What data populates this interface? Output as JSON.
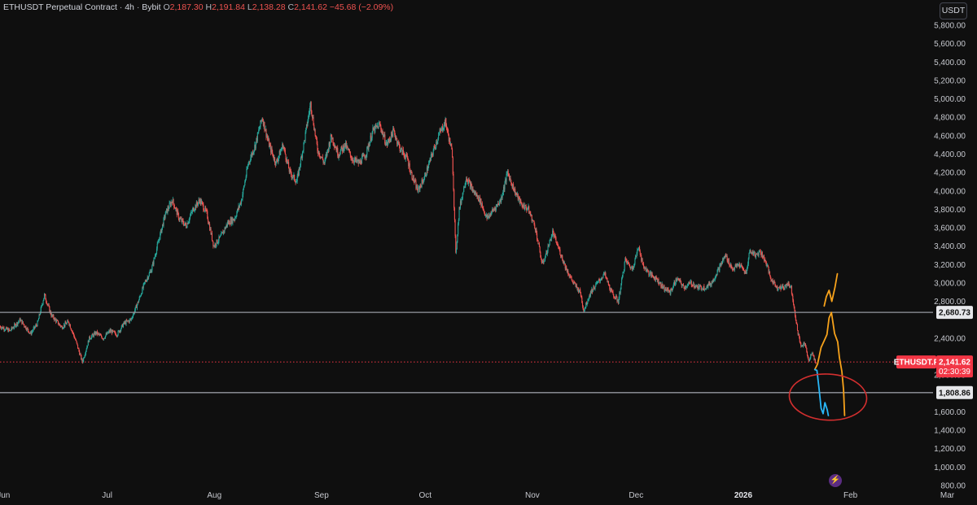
{
  "header": {
    "symbol": "ETHUSDT Perpetual Contract",
    "sep1": "·",
    "interval": "4h",
    "sep2": "·",
    "exchange": "Bybit",
    "open_label": "O",
    "open": "2,187.30",
    "high_label": "H",
    "high": "2,191.84",
    "low_label": "L",
    "low": "2,138.28",
    "close_label": "C",
    "close": "2,141.62",
    "change": "−45.68 (−2.09%)"
  },
  "unit_button": "USDT",
  "bolt_icon": "⚡",
  "colors": {
    "up": "#26a69a",
    "down": "#ef5350",
    "level_line": "#9598a1",
    "orange_path": "#f7a21b",
    "blue_path": "#29b6f6",
    "circle": "#d32f2f",
    "price_tag": "#f23645"
  },
  "chart_data": {
    "type": "candlestick",
    "symbol": "ETHUSDT.P",
    "ylim": [
      800,
      5800
    ],
    "y_ticks": [
      {
        "v": 5800,
        "label": "5,800.00"
      },
      {
        "v": 5600,
        "label": "5,600.00"
      },
      {
        "v": 5400,
        "label": "5,400.00"
      },
      {
        "v": 5200,
        "label": "5,200.00"
      },
      {
        "v": 5000,
        "label": "5,000.00"
      },
      {
        "v": 4800,
        "label": "4,800.00"
      },
      {
        "v": 4600,
        "label": "4,600.00"
      },
      {
        "v": 4400,
        "label": "4,400.00"
      },
      {
        "v": 4200,
        "label": "4,200.00"
      },
      {
        "v": 4000,
        "label": "4,000.00"
      },
      {
        "v": 3800,
        "label": "3,800.00"
      },
      {
        "v": 3600,
        "label": "3,600.00"
      },
      {
        "v": 3400,
        "label": "3,400.00"
      },
      {
        "v": 3200,
        "label": "3,200.00"
      },
      {
        "v": 3000,
        "label": "3,000.00"
      },
      {
        "v": 2800,
        "label": "2,800.00"
      },
      {
        "v": 2400,
        "label": "2,400.00"
      },
      {
        "v": 2000,
        "label": "2,000.00"
      },
      {
        "v": 1600,
        "label": "1,600.00"
      },
      {
        "v": 1400,
        "label": "1,400.00"
      },
      {
        "v": 1200,
        "label": "1,200.00"
      },
      {
        "v": 1000,
        "label": "1,000.00"
      },
      {
        "v": 800,
        "label": "800.00"
      }
    ],
    "x_ticks": [
      {
        "t": 1.0,
        "label": "Jun"
      },
      {
        "t": 31.0,
        "label": "Jul"
      },
      {
        "t": 62.0,
        "label": "Aug"
      },
      {
        "t": 93.0,
        "label": "Sep"
      },
      {
        "t": 123.0,
        "label": "Oct"
      },
      {
        "t": 154.0,
        "label": "Nov"
      },
      {
        "t": 184.0,
        "label": "Dec"
      },
      {
        "t": 215.0,
        "label": "2026",
        "bold": true
      },
      {
        "t": 246.0,
        "label": "Feb"
      },
      {
        "t": 274.0,
        "label": "Mar"
      }
    ],
    "x_domain": [
      0,
      282.6
    ],
    "levels": [
      {
        "value": 2680.73,
        "label": "2,680.73"
      },
      {
        "value": 1808.86,
        "label": "1,808.86"
      }
    ],
    "last_price": {
      "value": 2141.62,
      "label": "2,141.62",
      "countdown": "02:30:39",
      "symbol_label": "ETHUSDT.P"
    },
    "price_path": [
      [
        0,
        2530
      ],
      [
        3,
        2480
      ],
      [
        6,
        2600
      ],
      [
        9,
        2450
      ],
      [
        11,
        2560
      ],
      [
        13,
        2870
      ],
      [
        15,
        2650
      ],
      [
        18,
        2520
      ],
      [
        20,
        2580
      ],
      [
        22,
        2380
      ],
      [
        24,
        2140
      ],
      [
        26,
        2400
      ],
      [
        28,
        2460
      ],
      [
        30,
        2400
      ],
      [
        32,
        2480
      ],
      [
        34,
        2440
      ],
      [
        36,
        2560
      ],
      [
        38,
        2600
      ],
      [
        40,
        2780
      ],
      [
        42,
        3000
      ],
      [
        44,
        3150
      ],
      [
        46,
        3450
      ],
      [
        48,
        3750
      ],
      [
        50,
        3900
      ],
      [
        52,
        3700
      ],
      [
        54,
        3620
      ],
      [
        56,
        3800
      ],
      [
        58,
        3900
      ],
      [
        60,
        3750
      ],
      [
        62,
        3400
      ],
      [
        64,
        3500
      ],
      [
        66,
        3650
      ],
      [
        68,
        3700
      ],
      [
        70,
        3900
      ],
      [
        72,
        4300
      ],
      [
        74,
        4500
      ],
      [
        76,
        4800
      ],
      [
        78,
        4500
      ],
      [
        80,
        4300
      ],
      [
        82,
        4500
      ],
      [
        84,
        4200
      ],
      [
        86,
        4100
      ],
      [
        88,
        4500
      ],
      [
        90,
        4950
      ],
      [
        92,
        4450
      ],
      [
        94,
        4300
      ],
      [
        96,
        4600
      ],
      [
        98,
        4400
      ],
      [
        100,
        4500
      ],
      [
        102,
        4350
      ],
      [
        104,
        4300
      ],
      [
        106,
        4400
      ],
      [
        108,
        4650
      ],
      [
        110,
        4720
      ],
      [
        112,
        4500
      ],
      [
        114,
        4650
      ],
      [
        116,
        4450
      ],
      [
        118,
        4350
      ],
      [
        119,
        4200
      ],
      [
        121,
        4000
      ],
      [
        123,
        4150
      ],
      [
        125,
        4380
      ],
      [
        127,
        4600
      ],
      [
        129,
        4750
      ],
      [
        131,
        4400
      ],
      [
        132,
        3300
      ],
      [
        133,
        3800
      ],
      [
        135,
        4150
      ],
      [
        137,
        4000
      ],
      [
        139,
        3900
      ],
      [
        141,
        3700
      ],
      [
        143,
        3800
      ],
      [
        145,
        3900
      ],
      [
        147,
        4200
      ],
      [
        149,
        4000
      ],
      [
        151,
        3850
      ],
      [
        153,
        3800
      ],
      [
        155,
        3600
      ],
      [
        157,
        3200
      ],
      [
        158,
        3300
      ],
      [
        160,
        3550
      ],
      [
        162,
        3350
      ],
      [
        164,
        3150
      ],
      [
        166,
        3000
      ],
      [
        168,
        2900
      ],
      [
        169,
        2700
      ],
      [
        171,
        2900
      ],
      [
        173,
        3000
      ],
      [
        175,
        3100
      ],
      [
        177,
        2900
      ],
      [
        179,
        2800
      ],
      [
        181,
        3250
      ],
      [
        183,
        3150
      ],
      [
        185,
        3400
      ],
      [
        186,
        3200
      ],
      [
        188,
        3100
      ],
      [
        190,
        3050
      ],
      [
        192,
        2950
      ],
      [
        194,
        2900
      ],
      [
        196,
        3050
      ],
      [
        198,
        2950
      ],
      [
        200,
        3000
      ],
      [
        202,
        2950
      ],
      [
        204,
        2950
      ],
      [
        206,
        3000
      ],
      [
        208,
        3150
      ],
      [
        210,
        3300
      ],
      [
        212,
        3150
      ],
      [
        214,
        3200
      ],
      [
        216,
        3100
      ],
      [
        217,
        3350
      ],
      [
        219,
        3300
      ],
      [
        220,
        3350
      ],
      [
        222,
        3200
      ],
      [
        223,
        3050
      ],
      [
        225,
        2950
      ],
      [
        227,
        2950
      ],
      [
        228,
        3000
      ],
      [
        229,
        2950
      ],
      [
        230,
        2700
      ],
      [
        231,
        2450
      ],
      [
        232,
        2300
      ],
      [
        233,
        2350
      ],
      [
        234,
        2150
      ],
      [
        235,
        2250
      ],
      [
        236,
        2141.62
      ]
    ],
    "projection_orange": [
      [
        235.7,
        2060
      ],
      [
        236.5,
        2120
      ],
      [
        237.5,
        2300
      ],
      [
        238.5,
        2380
      ],
      [
        239.2,
        2440
      ],
      [
        239.8,
        2620
      ],
      [
        240.5,
        2680
      ],
      [
        241.4,
        2450
      ],
      [
        242.3,
        2360
      ],
      [
        242.8,
        2190
      ],
      [
        243.5,
        2040
      ],
      [
        244.0,
        1840
      ],
      [
        244.3,
        1560
      ]
    ],
    "projection_orange_up": [
      [
        238.4,
        2750
      ],
      [
        239.0,
        2850
      ],
      [
        239.8,
        2920
      ],
      [
        240.6,
        2800
      ],
      [
        241.5,
        2950
      ],
      [
        242.2,
        3100
      ]
    ],
    "projection_blue": [
      [
        235.7,
        2060
      ],
      [
        236.3,
        2050
      ],
      [
        236.9,
        1860
      ],
      [
        237.5,
        1640
      ],
      [
        238.1,
        1580
      ],
      [
        238.6,
        1700
      ],
      [
        239.3,
        1620
      ],
      [
        239.6,
        1560
      ]
    ],
    "ellipse_center": [
      239.5,
      1760
    ],
    "ellipse_radius": [
      11.2,
      250
    ]
  }
}
